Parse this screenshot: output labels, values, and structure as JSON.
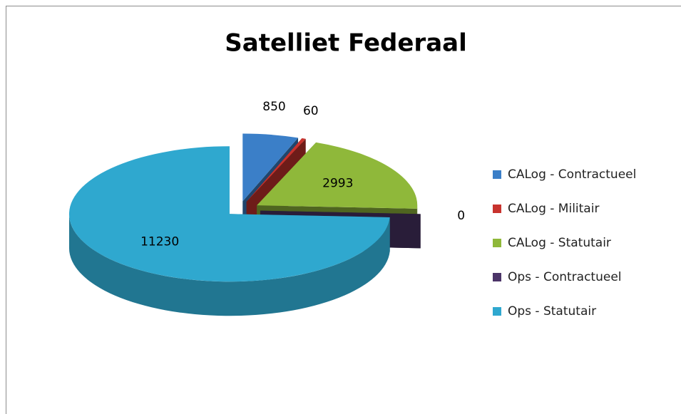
{
  "chart_data": {
    "type": "pie",
    "title": "Satelliet Federaal",
    "categories": [
      "CALog - Contractueel",
      "CALog - Militair",
      "CALog - Statutair",
      "Ops - Contractueel",
      "Ops - Statutair"
    ],
    "values": [
      850,
      60,
      2993,
      0,
      11230
    ],
    "colors": [
      "#3b7fc8",
      "#c8332e",
      "#8fb83a",
      "#4b3468",
      "#2fa8cf"
    ],
    "legend": "right"
  }
}
